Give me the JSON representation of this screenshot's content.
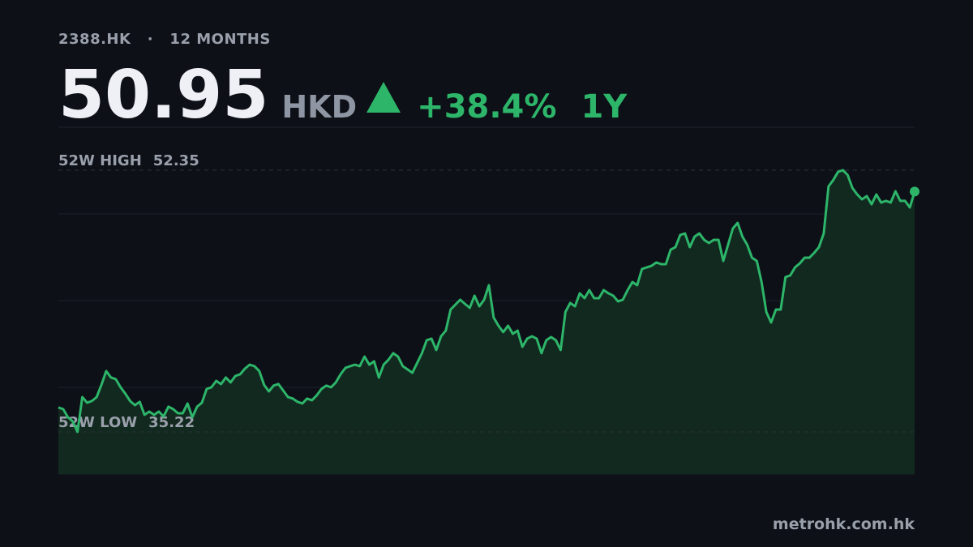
{
  "chart_data": {
    "type": "line",
    "ticker": "2388.HK",
    "separator": "·",
    "period": "12 MONTHS",
    "price": "50.95",
    "currency": "HKD",
    "change": "+38.4%",
    "range": "1Y",
    "high": {
      "label": "52W HIGH",
      "value": 52.35
    },
    "low": {
      "label": "52W LOW",
      "value": 35.22
    },
    "source": "metrohk.com.hk",
    "color": "#2db56a",
    "area_color": "#12291f",
    "ylim": [
      32.46,
      55.16
    ],
    "values": [
      36.82,
      36.71,
      36.18,
      35.91,
      35.22,
      37.5,
      37.13,
      37.24,
      37.5,
      38.3,
      39.2,
      38.78,
      38.67,
      38.14,
      37.72,
      37.24,
      36.97,
      37.19,
      36.34,
      36.55,
      36.34,
      36.55,
      36.23,
      36.87,
      36.71,
      36.44,
      36.44,
      37.08,
      36.18,
      36.87,
      37.13,
      38.03,
      38.14,
      38.56,
      38.35,
      38.78,
      38.46,
      38.88,
      38.99,
      39.36,
      39.62,
      39.52,
      39.2,
      38.3,
      37.87,
      38.25,
      38.35,
      37.93,
      37.5,
      37.4,
      37.19,
      37.08,
      37.4,
      37.29,
      37.61,
      38.03,
      38.25,
      38.14,
      38.46,
      38.99,
      39.41,
      39.52,
      39.62,
      39.52,
      40.15,
      39.62,
      39.84,
      38.78,
      39.62,
      39.94,
      40.37,
      40.15,
      39.52,
      39.31,
      39.09,
      39.73,
      40.37,
      41.22,
      41.32,
      40.58,
      41.48,
      41.85,
      43.23,
      43.55,
      43.87,
      43.6,
      43.34,
      44.13,
      43.44,
      43.87,
      44.82,
      42.7,
      42.17,
      41.75,
      42.17,
      41.64,
      41.85,
      40.79,
      41.32,
      41.48,
      41.32,
      40.37,
      41.22,
      41.43,
      41.22,
      40.58,
      43.07,
      43.66,
      43.44,
      44.29,
      43.97,
      44.5,
      43.97,
      43.97,
      44.5,
      44.29,
      44.13,
      43.76,
      43.87,
      44.5,
      45.03,
      44.82,
      45.88,
      45.99,
      46.09,
      46.31,
      46.2,
      46.2,
      47.15,
      47.31,
      48.11,
      48.21,
      47.31,
      48.0,
      48.21,
      47.79,
      47.58,
      47.79,
      47.79,
      46.41,
      47.47,
      48.53,
      48.9,
      48.0,
      47.47,
      46.62,
      46.41,
      45.03,
      43.07,
      42.38,
      43.23,
      43.23,
      45.35,
      45.46,
      45.99,
      46.25,
      46.62,
      46.62,
      46.94,
      47.31,
      48.21,
      51.29,
      51.71,
      52.24,
      52.35,
      52.03,
      51.18,
      50.76,
      50.44,
      50.65,
      50.12,
      50.76,
      50.23,
      50.34,
      50.23,
      50.97,
      50.34,
      50.34,
      49.91,
      50.95
    ]
  }
}
